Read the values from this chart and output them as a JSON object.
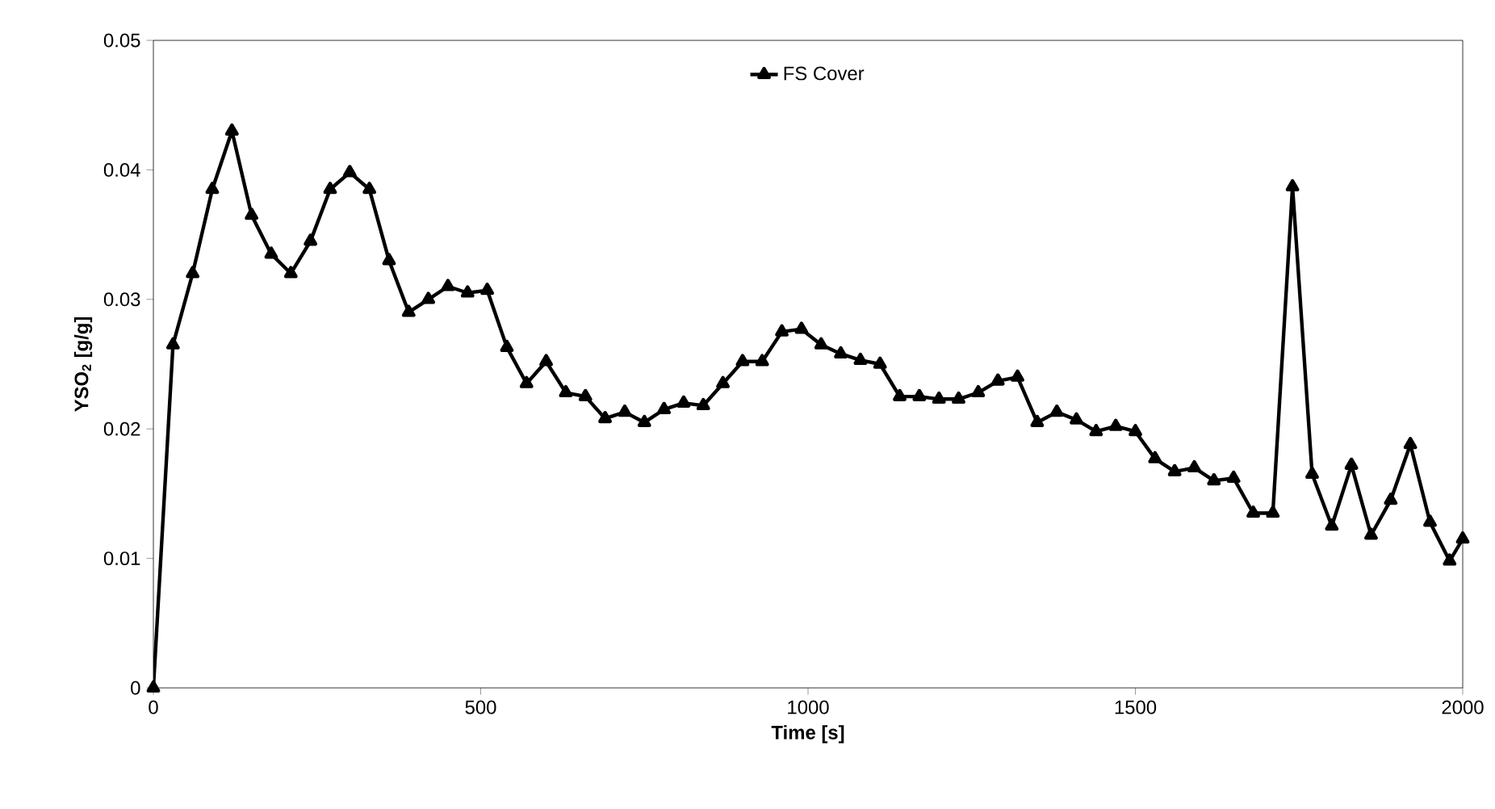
{
  "chart_data": {
    "type": "line",
    "xlabel": "Time [s]",
    "ylabel": "YSO$_{2}$ [g/g]",
    "xlim": [
      0,
      2000
    ],
    "ylim": [
      0,
      0.05
    ],
    "xticks": [
      0,
      500,
      1000,
      1500,
      2000
    ],
    "yticks": [
      0,
      0.01,
      0.02,
      0.03,
      0.04,
      0.05
    ],
    "grid": false,
    "legend": "top",
    "marker": "triangle",
    "line_style": "solid",
    "series": [
      {
        "name": "FS Cover",
        "color": "#000000",
        "x": [
          0,
          30,
          60,
          90,
          120,
          150,
          180,
          210,
          240,
          270,
          300,
          330,
          360,
          390,
          420,
          450,
          480,
          510,
          540,
          570,
          600,
          630,
          660,
          690,
          720,
          750,
          780,
          810,
          840,
          870,
          900,
          930,
          960,
          990,
          1020,
          1050,
          1080,
          1110,
          1140,
          1170,
          1200,
          1230,
          1260,
          1290,
          1320,
          1350,
          1380,
          1410,
          1440,
          1470,
          1500,
          1530,
          1560,
          1590,
          1620,
          1650,
          1680,
          1710,
          1740,
          1770,
          1800,
          1830,
          1860,
          1890,
          1920,
          1950,
          1980,
          2000
        ],
        "values": [
          0,
          0.0265,
          0.032,
          0.0385,
          0.043,
          0.0365,
          0.0335,
          0.032,
          0.0345,
          0.0385,
          0.0398,
          0.0385,
          0.033,
          0.029,
          0.03,
          0.031,
          0.0305,
          0.0307,
          0.0263,
          0.0235,
          0.0252,
          0.0228,
          0.0225,
          0.0208,
          0.0213,
          0.0205,
          0.0215,
          0.022,
          0.0218,
          0.0235,
          0.0252,
          0.0252,
          0.0275,
          0.0277,
          0.0265,
          0.0258,
          0.0253,
          0.025,
          0.0225,
          0.0225,
          0.0223,
          0.0223,
          0.0228,
          0.0237,
          0.024,
          0.0205,
          0.0213,
          0.0207,
          0.0198,
          0.0202,
          0.0198,
          0.0177,
          0.0167,
          0.017,
          0.016,
          0.0162,
          0.0135,
          0.0135,
          0.0387,
          0.0165,
          0.0125,
          0.0172,
          0.0118,
          0.0145,
          0.0188,
          0.0128,
          0.0098,
          0.0115
        ]
      }
    ]
  }
}
